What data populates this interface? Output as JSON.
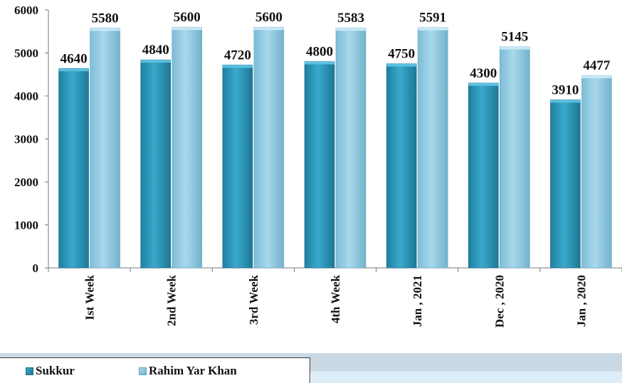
{
  "chart_data": {
    "type": "bar",
    "categories": [
      "Ist Week",
      "2nd Week",
      "3rd Week",
      "4th Week",
      "Jan , 2021",
      "Dec , 2020",
      "Jan , 2020"
    ],
    "series": [
      {
        "name": "Sukkur",
        "values": [
          4640,
          4840,
          4720,
          4800,
          4750,
          4300,
          3910
        ],
        "color": "#2e9bbf"
      },
      {
        "name": "Rahim Yar Khan",
        "values": [
          5580,
          5600,
          5600,
          5583,
          5591,
          5145,
          4477
        ],
        "color": "#8fc8df"
      }
    ],
    "ylim": [
      0,
      6000
    ],
    "yticks": [
      0,
      1000,
      2000,
      3000,
      4000,
      5000,
      6000
    ],
    "title": "",
    "xlabel": "",
    "ylabel": "",
    "legend_position": "bottom-left",
    "grid": false,
    "data_labels": true
  }
}
